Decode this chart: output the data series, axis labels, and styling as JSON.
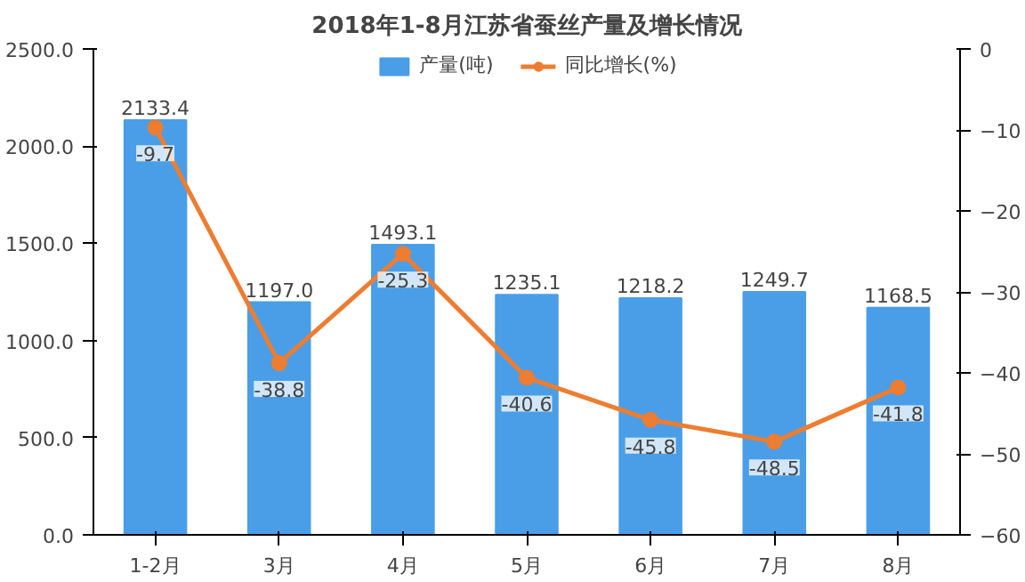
{
  "chart_data": {
    "type": "bar",
    "title": "2018年1-8月江苏省蚕丝产量及增长情况",
    "categories": [
      "1-2月",
      "3月",
      "4月",
      "5月",
      "6月",
      "7月",
      "8月"
    ],
    "series": [
      {
        "name": "产量(吨)",
        "color": "#4a9ee8",
        "values": [
          2133.4,
          1197,
          1493.1,
          1235.1,
          1218.2,
          1249.7,
          1168.5
        ],
        "value_labels": [
          "2133.4",
          "1197.0",
          "1493.1",
          "1235.1",
          "1218.2",
          "1249.7",
          "1168.5"
        ]
      },
      {
        "name": "同比增长(%)",
        "type": "line",
        "axis": "y2",
        "color": "#ed7d31",
        "marker": "circle",
        "values": [
          -9.7,
          -38.8,
          -25.3,
          -40.6,
          -45.8,
          -48.5,
          -41.8
        ],
        "value_labels": [
          "-9.7",
          "-38.8",
          "-25.3",
          "-40.6",
          "-45.8",
          "-48.5",
          "-41.8"
        ]
      }
    ],
    "ylim": [
      0,
      2500
    ],
    "yticks": [
      {
        "value": 0,
        "label": "0.0"
      },
      {
        "value": 500,
        "label": "500.0"
      },
      {
        "value": 1000,
        "label": "1000.0"
      },
      {
        "value": 1500,
        "label": "1500.0"
      },
      {
        "value": 2000,
        "label": "2000.0"
      },
      {
        "value": 2500,
        "label": "2500.0"
      }
    ],
    "y2lim": [
      -60,
      0
    ],
    "y2ticks": [
      -60,
      -50,
      -40,
      -30,
      -20,
      -10,
      0
    ],
    "grid": false,
    "legend": "top"
  }
}
